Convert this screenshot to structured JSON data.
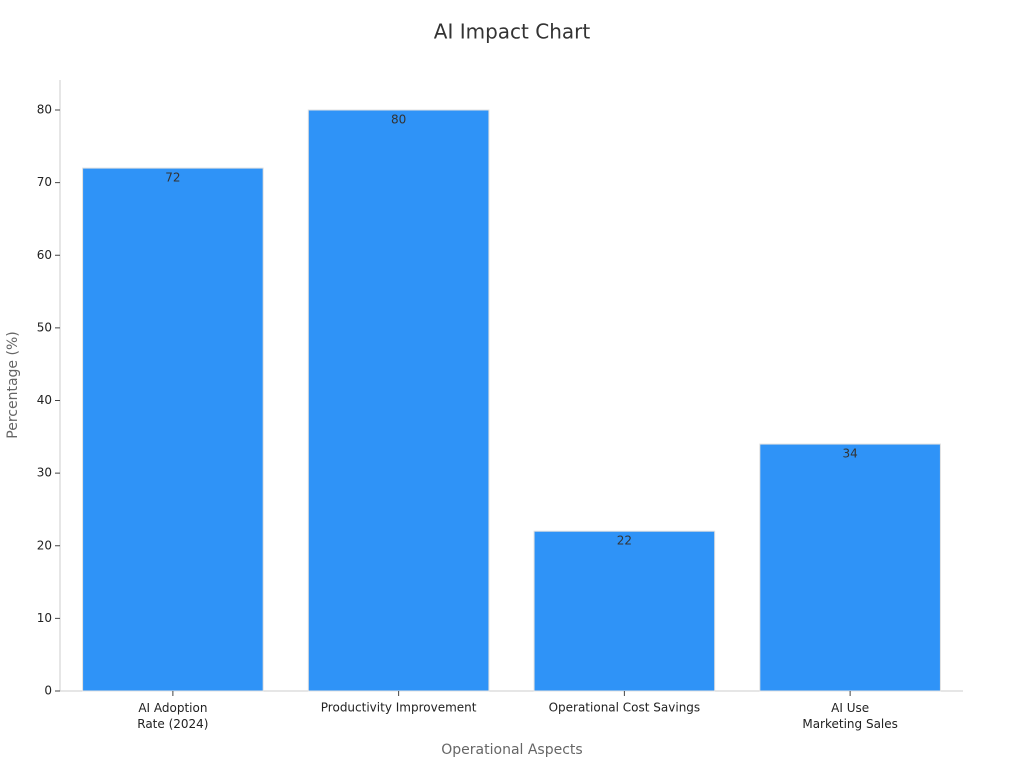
{
  "chart_data": {
    "type": "bar",
    "title": "AI Impact Chart",
    "x_label": "Operational Aspects",
    "y_label": "Percentage (%)",
    "categories": [
      "AI Adoption\nRate (2024)",
      "Productivity Improvement",
      "Operational Cost Savings",
      "AI Use\nMarketing Sales"
    ],
    "values": [
      72,
      80,
      22,
      34
    ],
    "color": "#2f93f7",
    "ylim": [
      0,
      84
    ],
    "yticks": [
      0,
      10,
      20,
      30,
      40,
      50,
      60,
      70,
      80
    ],
    "grid": false
  }
}
